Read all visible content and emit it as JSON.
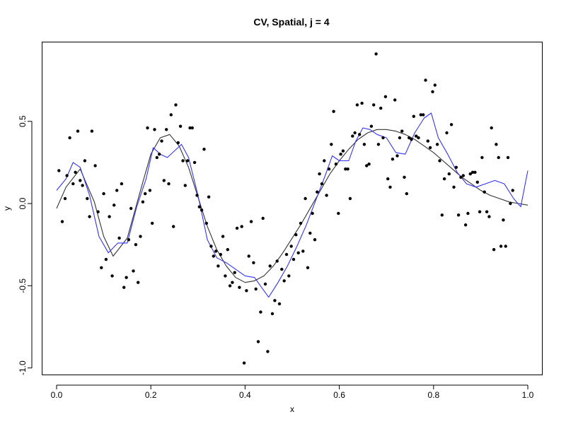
{
  "chart_data": {
    "type": "scatter",
    "title": "CV, Spatial, j = 4",
    "xlabel": "x",
    "ylabel": "y",
    "xlim": [
      -0.03,
      1.03
    ],
    "ylim": [
      -1.04,
      0.98
    ],
    "x_ticks": [
      0.0,
      0.2,
      0.4,
      0.6,
      0.8,
      1.0
    ],
    "x_tick_labels": [
      "0.0",
      "0.2",
      "0.4",
      "0.6",
      "0.8",
      "1.0"
    ],
    "y_ticks": [
      -1.0,
      -0.5,
      0.0,
      0.5
    ],
    "y_tick_labels": [
      "-1.0",
      "-0.5",
      "0.0",
      "0.5"
    ],
    "grid": false,
    "legend": "none",
    "colors": {
      "points": "#000000",
      "true_curve": "#333333",
      "fit_curve": "#3333ff"
    },
    "points": [
      [
        0.005,
        0.2
      ],
      [
        0.012,
        -0.11
      ],
      [
        0.018,
        0.03
      ],
      [
        0.022,
        0.17
      ],
      [
        0.028,
        0.4
      ],
      [
        0.035,
        0.12
      ],
      [
        0.04,
        0.19
      ],
      [
        0.045,
        0.44
      ],
      [
        0.05,
        0.14
      ],
      [
        0.055,
        0.11
      ],
      [
        0.06,
        0.26
      ],
      [
        0.065,
        0.03
      ],
      [
        0.07,
        -0.08
      ],
      [
        0.075,
        0.44
      ],
      [
        0.082,
        0.23
      ],
      [
        0.088,
        -0.05
      ],
      [
        0.095,
        -0.39
      ],
      [
        0.1,
        0.06
      ],
      [
        0.105,
        -0.34
      ],
      [
        0.112,
        -0.08
      ],
      [
        0.118,
        -0.44
      ],
      [
        0.122,
        -0.01
      ],
      [
        0.128,
        0.08
      ],
      [
        0.133,
        -0.21
      ],
      [
        0.138,
        0.12
      ],
      [
        0.143,
        -0.51
      ],
      [
        0.148,
        -0.45
      ],
      [
        0.153,
        -0.22
      ],
      [
        0.158,
        -0.03
      ],
      [
        0.163,
        -0.41
      ],
      [
        0.168,
        -0.25
      ],
      [
        0.173,
        -0.48
      ],
      [
        0.178,
        -0.2
      ],
      [
        0.183,
        0.01
      ],
      [
        0.188,
        0.06
      ],
      [
        0.193,
        0.46
      ],
      [
        0.198,
        0.08
      ],
      [
        0.203,
        -0.12
      ],
      [
        0.208,
        0.45
      ],
      [
        0.213,
        0.28
      ],
      [
        0.218,
        0.3
      ],
      [
        0.223,
        0.38
      ],
      [
        0.228,
        0.14
      ],
      [
        0.233,
        0.45
      ],
      [
        0.238,
        0.12
      ],
      [
        0.243,
        0.54
      ],
      [
        0.248,
        -0.14
      ],
      [
        0.253,
        0.6
      ],
      [
        0.258,
        0.37
      ],
      [
        0.263,
        0.47
      ],
      [
        0.268,
        0.26
      ],
      [
        0.273,
        0.11
      ],
      [
        0.278,
        0.26
      ],
      [
        0.283,
        0.46
      ],
      [
        0.288,
        0.46
      ],
      [
        0.293,
        0.25
      ],
      [
        0.298,
        0.05
      ],
      [
        0.303,
        -0.02
      ],
      [
        0.308,
        -0.04
      ],
      [
        0.313,
        0.33
      ],
      [
        0.318,
        -0.12
      ],
      [
        0.323,
        0.04
      ],
      [
        0.328,
        -0.26
      ],
      [
        0.333,
        -0.32
      ],
      [
        0.338,
        -0.29
      ],
      [
        0.343,
        -0.38
      ],
      [
        0.348,
        -0.31
      ],
      [
        0.353,
        -0.2
      ],
      [
        0.358,
        -0.44
      ],
      [
        0.363,
        -0.28
      ],
      [
        0.368,
        -0.5
      ],
      [
        0.373,
        -0.48
      ],
      [
        0.378,
        -0.42
      ],
      [
        0.383,
        -0.15
      ],
      [
        0.388,
        -0.51
      ],
      [
        0.393,
        -0.14
      ],
      [
        0.398,
        -0.97
      ],
      [
        0.403,
        -0.53
      ],
      [
        0.408,
        -0.32
      ],
      [
        0.413,
        -0.11
      ],
      [
        0.418,
        -0.36
      ],
      [
        0.423,
        -0.52
      ],
      [
        0.428,
        -0.84
      ],
      [
        0.433,
        -0.66
      ],
      [
        0.438,
        -0.09
      ],
      [
        0.443,
        -0.49
      ],
      [
        0.448,
        -0.9
      ],
      [
        0.453,
        -0.38
      ],
      [
        0.458,
        -0.67
      ],
      [
        0.463,
        -0.59
      ],
      [
        0.468,
        -0.35
      ],
      [
        0.473,
        -0.61
      ],
      [
        0.478,
        -0.4
      ],
      [
        0.483,
        -0.47
      ],
      [
        0.488,
        -0.31
      ],
      [
        0.493,
        -0.44
      ],
      [
        0.498,
        -0.26
      ],
      [
        0.503,
        -0.34
      ],
      [
        0.508,
        -0.19
      ],
      [
        0.513,
        -0.3
      ],
      [
        0.518,
        -0.12
      ],
      [
        0.523,
        -0.29
      ],
      [
        0.528,
        0.03
      ],
      [
        0.533,
        -0.39
      ],
      [
        0.538,
        -0.18
      ],
      [
        0.543,
        -0.06
      ],
      [
        0.548,
        -0.22
      ],
      [
        0.553,
        0.07
      ],
      [
        0.558,
        0.18
      ],
      [
        0.563,
        0.12
      ],
      [
        0.568,
        0.26
      ],
      [
        0.573,
        0.05
      ],
      [
        0.578,
        0.21
      ],
      [
        0.583,
        0.36
      ],
      [
        0.588,
        0.56
      ],
      [
        0.593,
        0.24
      ],
      [
        0.598,
        -0.06
      ],
      [
        0.603,
        0.3
      ],
      [
        0.608,
        0.32
      ],
      [
        0.613,
        0.21
      ],
      [
        0.618,
        0.21
      ],
      [
        0.623,
        0.03
      ],
      [
        0.628,
        0.41
      ],
      [
        0.633,
        0.43
      ],
      [
        0.638,
        0.6
      ],
      [
        0.643,
        0.42
      ],
      [
        0.648,
        0.61
      ],
      [
        0.653,
        0.36
      ],
      [
        0.658,
        0.23
      ],
      [
        0.663,
        0.24
      ],
      [
        0.668,
        0.47
      ],
      [
        0.673,
        0.6
      ],
      [
        0.678,
        0.91
      ],
      [
        0.683,
        0.36
      ],
      [
        0.688,
        0.58
      ],
      [
        0.693,
        0.4
      ],
      [
        0.698,
        0.65
      ],
      [
        0.703,
        0.15
      ],
      [
        0.708,
        0.1
      ],
      [
        0.713,
        0.27
      ],
      [
        0.718,
        0.63
      ],
      [
        0.723,
        0.29
      ],
      [
        0.728,
        0.4
      ],
      [
        0.733,
        0.44
      ],
      [
        0.738,
        0.16
      ],
      [
        0.743,
        0.06
      ],
      [
        0.748,
        0.4
      ],
      [
        0.753,
        0.39
      ],
      [
        0.758,
        0.53
      ],
      [
        0.763,
        0.41
      ],
      [
        0.768,
        0.4
      ],
      [
        0.773,
        0.54
      ],
      [
        0.778,
        0.54
      ],
      [
        0.783,
        0.75
      ],
      [
        0.788,
        0.38
      ],
      [
        0.793,
        0.34
      ],
      [
        0.798,
        0.68
      ],
      [
        0.803,
        0.72
      ],
      [
        0.808,
        0.36
      ],
      [
        0.813,
        0.26
      ],
      [
        0.818,
        -0.07
      ],
      [
        0.823,
        0.15
      ],
      [
        0.828,
        0.43
      ],
      [
        0.833,
        0.18
      ],
      [
        0.838,
        0.48
      ],
      [
        0.843,
        0.1
      ],
      [
        0.848,
        0.22
      ],
      [
        0.853,
        -0.07
      ],
      [
        0.858,
        0.16
      ],
      [
        0.863,
        0.17
      ],
      [
        0.868,
        -0.13
      ],
      [
        0.873,
        -0.06
      ],
      [
        0.878,
        0.18
      ],
      [
        0.883,
        0.19
      ],
      [
        0.888,
        0.19
      ],
      [
        0.893,
        0.13
      ],
      [
        0.898,
        -0.05
      ],
      [
        0.903,
        0.28
      ],
      [
        0.908,
        0.07
      ],
      [
        0.913,
        -0.05
      ],
      [
        0.918,
        -0.08
      ],
      [
        0.923,
        0.46
      ],
      [
        0.928,
        -0.28
      ],
      [
        0.933,
        0.36
      ],
      [
        0.938,
        0.28
      ],
      [
        0.943,
        -0.26
      ],
      [
        0.948,
        -0.1
      ],
      [
        0.953,
        -0.26
      ],
      [
        0.958,
        0.28
      ],
      [
        0.963,
        0.0
      ],
      [
        0.968,
        0.08
      ]
    ],
    "series": [
      {
        "x": [
          0.0,
          0.02,
          0.05,
          0.08,
          0.1,
          0.12,
          0.15,
          0.18,
          0.2,
          0.22,
          0.24,
          0.26,
          0.28,
          0.3,
          0.32,
          0.34,
          0.36,
          0.38,
          0.4,
          0.42,
          0.44,
          0.46,
          0.48,
          0.5,
          0.52,
          0.54,
          0.56,
          0.58,
          0.6,
          0.62,
          0.64,
          0.66,
          0.68,
          0.7,
          0.72,
          0.74,
          0.76,
          0.78,
          0.8,
          0.82,
          0.84,
          0.86,
          0.88,
          0.9,
          0.92,
          0.94,
          0.96,
          0.98,
          1.0
        ],
        "y": [
          -0.03,
          0.1,
          0.21,
          0.01,
          -0.2,
          -0.32,
          -0.21,
          0.1,
          0.3,
          0.4,
          0.42,
          0.35,
          0.22,
          0.04,
          -0.14,
          -0.28,
          -0.38,
          -0.45,
          -0.48,
          -0.47,
          -0.44,
          -0.38,
          -0.3,
          -0.21,
          -0.12,
          -0.02,
          0.08,
          0.18,
          0.26,
          0.33,
          0.39,
          0.43,
          0.45,
          0.45,
          0.44,
          0.42,
          0.39,
          0.35,
          0.31,
          0.26,
          0.21,
          0.16,
          0.12,
          0.08,
          0.05,
          0.03,
          0.01,
          0.0,
          -0.01
        ]
      },
      {
        "x": [
          0.0,
          0.02,
          0.035,
          0.05,
          0.07,
          0.09,
          0.11,
          0.13,
          0.15,
          0.17,
          0.19,
          0.205,
          0.22,
          0.235,
          0.25,
          0.265,
          0.28,
          0.3,
          0.32,
          0.34,
          0.36,
          0.38,
          0.4,
          0.42,
          0.44,
          0.45,
          0.47,
          0.49,
          0.51,
          0.53,
          0.55,
          0.57,
          0.585,
          0.6,
          0.62,
          0.635,
          0.65,
          0.665,
          0.68,
          0.7,
          0.72,
          0.74,
          0.76,
          0.78,
          0.795,
          0.81,
          0.83,
          0.85,
          0.87,
          0.89,
          0.91,
          0.93,
          0.95,
          0.97,
          0.985,
          1.0
        ],
        "y": [
          0.08,
          0.15,
          0.25,
          0.22,
          0.05,
          -0.2,
          -0.3,
          -0.24,
          -0.24,
          -0.02,
          0.15,
          0.34,
          0.3,
          0.28,
          0.32,
          0.36,
          0.28,
          0.05,
          -0.22,
          -0.33,
          -0.36,
          -0.4,
          -0.44,
          -0.45,
          -0.53,
          -0.57,
          -0.48,
          -0.38,
          -0.26,
          -0.13,
          0.02,
          0.17,
          0.29,
          0.26,
          0.26,
          0.38,
          0.46,
          0.45,
          0.42,
          0.4,
          0.31,
          0.3,
          0.43,
          0.52,
          0.55,
          0.4,
          0.3,
          0.19,
          0.12,
          0.1,
          0.12,
          0.14,
          0.12,
          0.03,
          -0.02,
          0.2
        ]
      }
    ]
  }
}
